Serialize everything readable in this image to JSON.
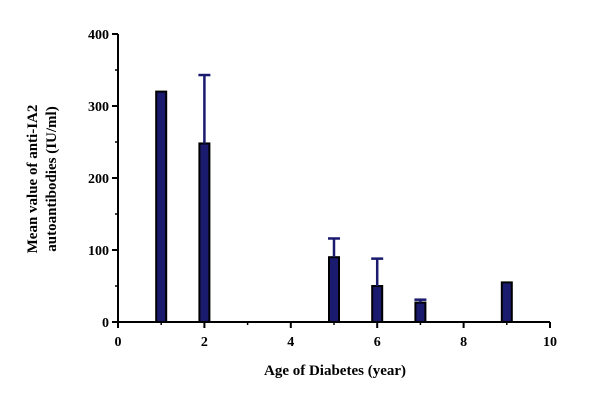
{
  "chart_data": {
    "type": "bar",
    "xlabel": "Age of Diabetes (year)",
    "ylabel_lines": [
      "Mean value of anti-IA2",
      "autoantibodies (IU/ml)"
    ],
    "xlim": [
      0,
      10
    ],
    "ylim": [
      0,
      400
    ],
    "x_ticks": [
      0,
      2,
      4,
      6,
      8,
      10
    ],
    "y_ticks": [
      0,
      100,
      200,
      300,
      400
    ],
    "grid": false,
    "legend": "none",
    "bar_color": "#1a1a6e",
    "bar_edge_color": "#000000",
    "points": [
      {
        "x": 1,
        "value": 320,
        "error": 0
      },
      {
        "x": 2,
        "value": 248,
        "error": 95
      },
      {
        "x": 5,
        "value": 90,
        "error": 26
      },
      {
        "x": 6,
        "value": 50,
        "error": 38
      },
      {
        "x": 7,
        "value": 27,
        "error": 4
      },
      {
        "x": 9,
        "value": 55,
        "error": 0
      }
    ]
  }
}
